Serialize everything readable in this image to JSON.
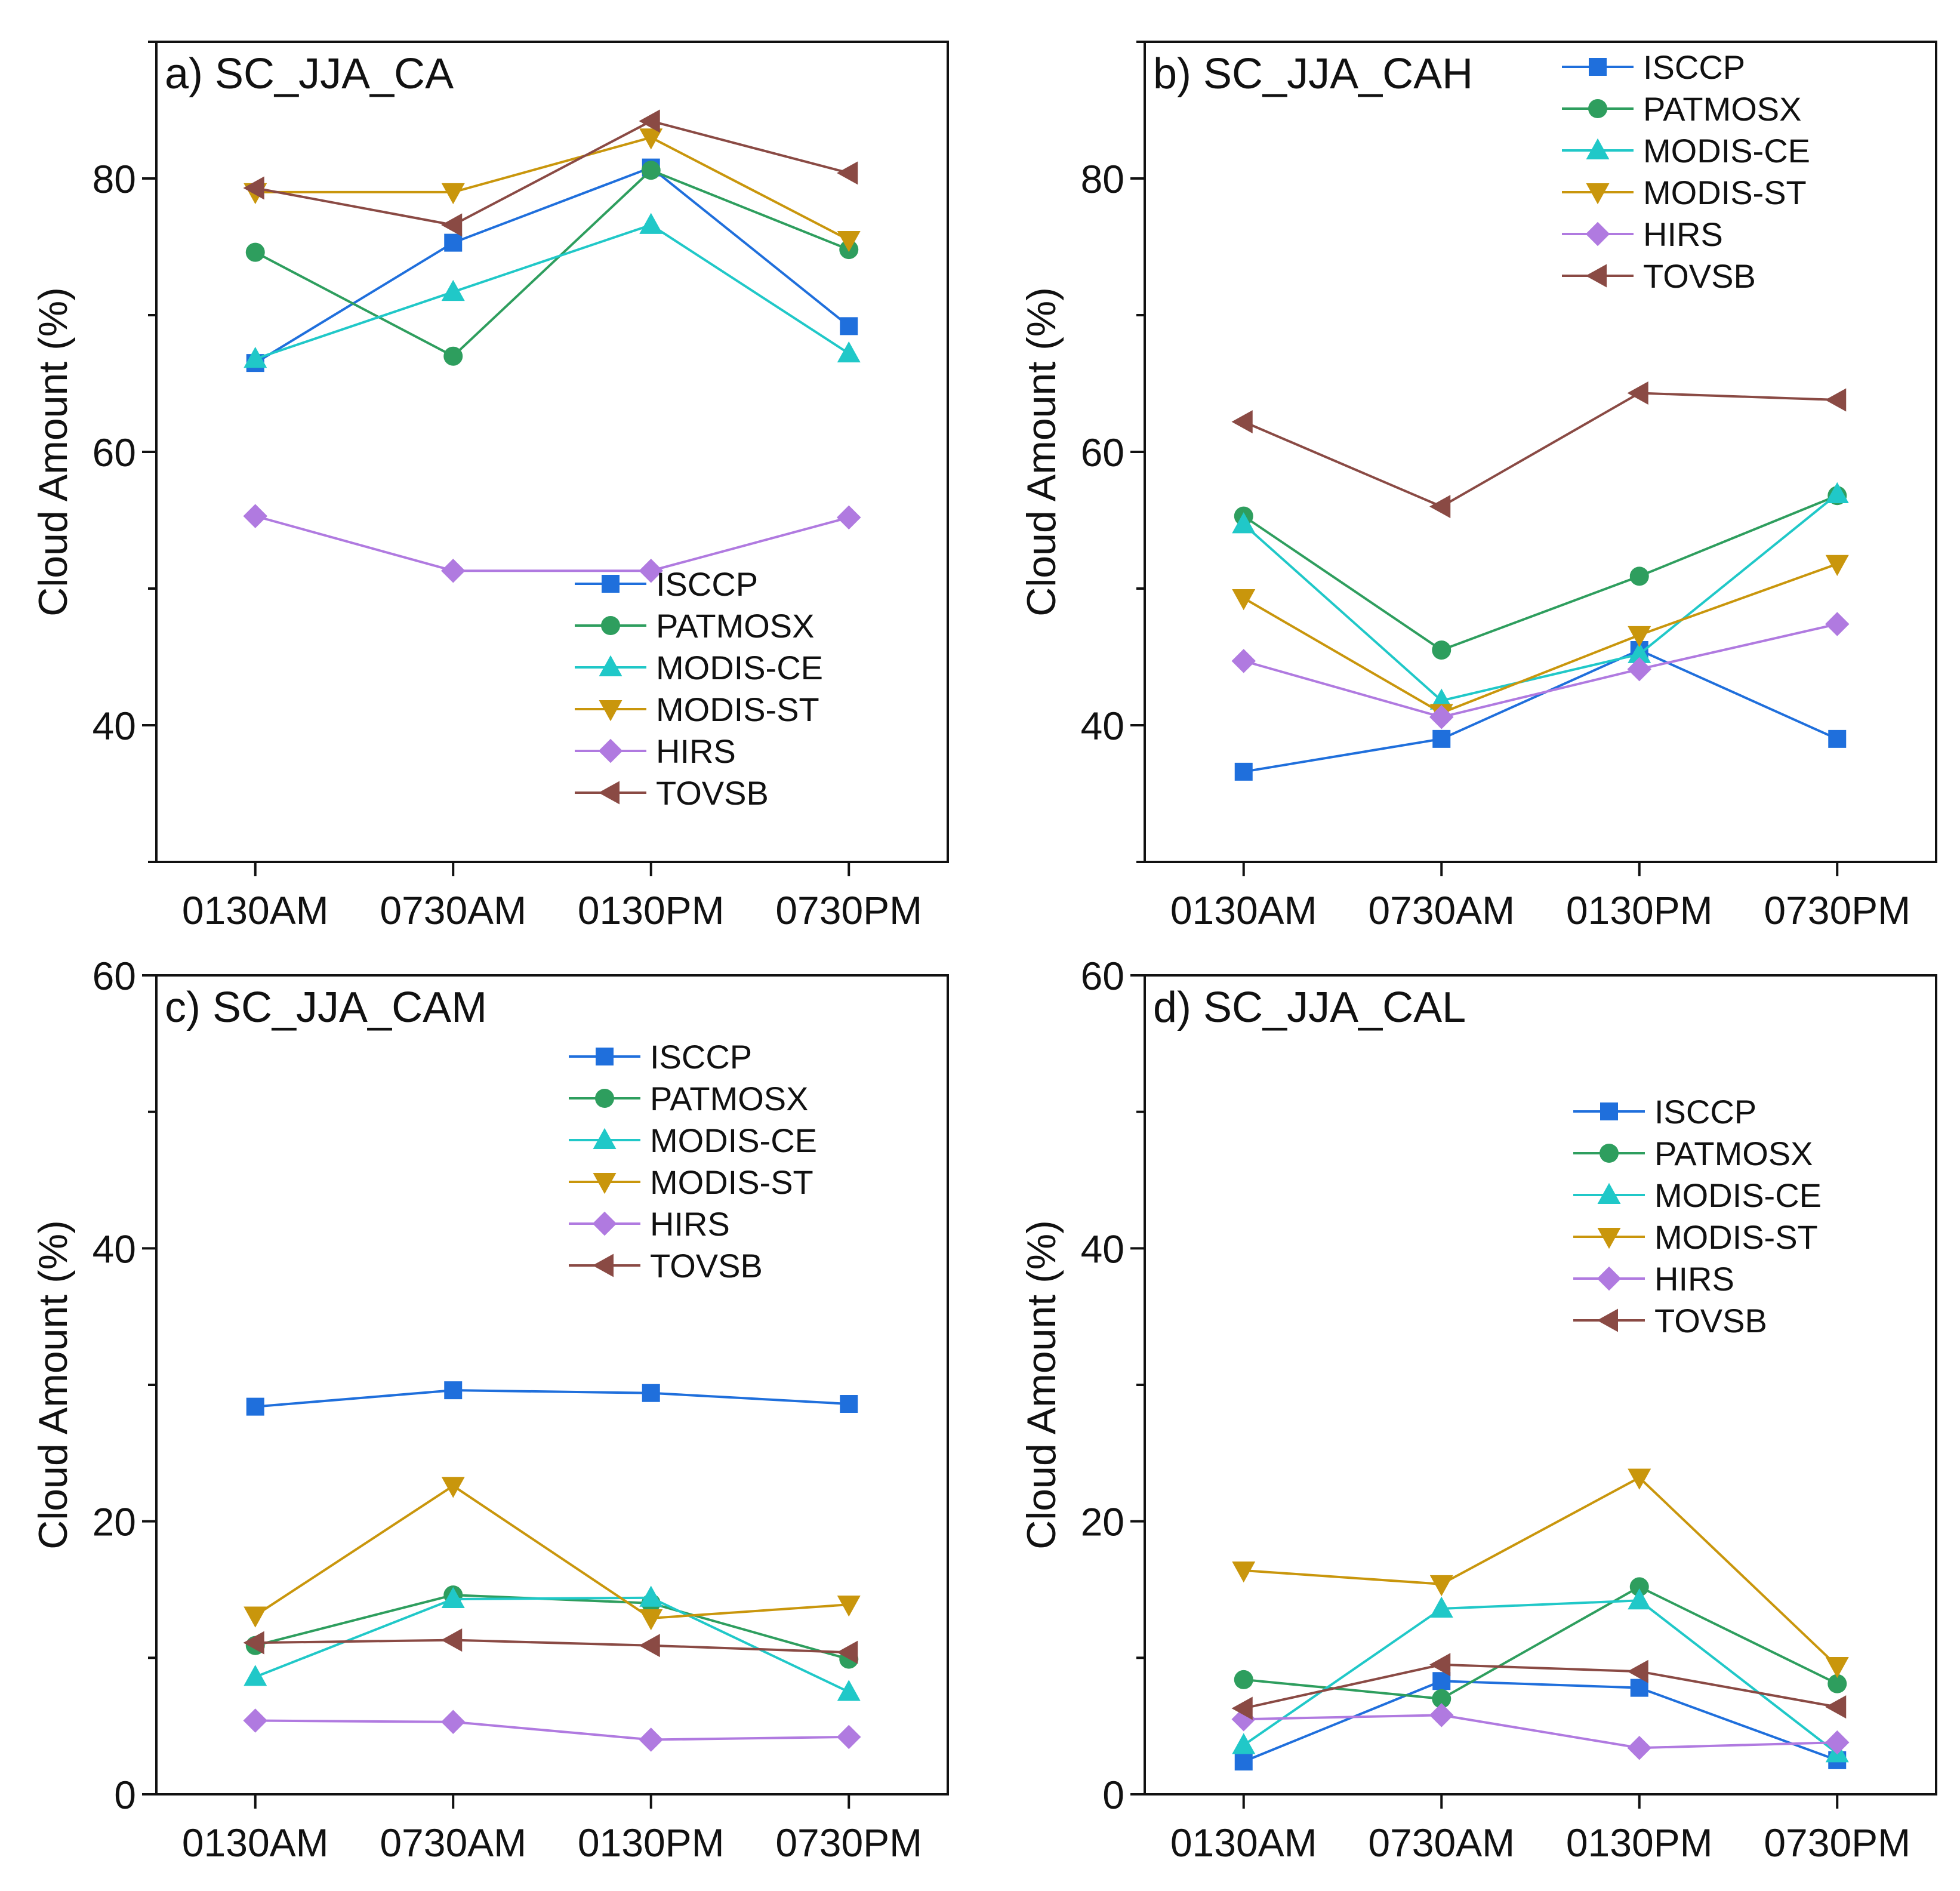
{
  "colors": {
    "ISCCP": "#1f6fdc",
    "PATMOSX": "#2e9e5e",
    "MODIS-CE": "#20c8c8",
    "MODIS-ST": "#c9960c",
    "HIRS": "#b07ae0",
    "TOVSB": "#8a4a44"
  },
  "chart_data": [
    {
      "type": "line",
      "title": "a) SC_JJA_CA",
      "xlabel": "",
      "ylabel": "Cloud Amount (%)",
      "categories": [
        "0130AM",
        "0730AM",
        "0130PM",
        "0730PM"
      ],
      "ylim": [
        30,
        90
      ],
      "yticks": [
        40,
        60,
        80
      ],
      "legend_position": "bottom-right",
      "series": [
        {
          "name": "ISCCP",
          "marker": "square",
          "values": [
            66.5,
            75.3,
            80.8,
            69.2
          ]
        },
        {
          "name": "PATMOSX",
          "marker": "circle",
          "values": [
            74.6,
            67.0,
            80.6,
            74.8
          ]
        },
        {
          "name": "MODIS-CE",
          "marker": "triangle-up",
          "values": [
            66.8,
            71.7,
            76.6,
            67.2
          ]
        },
        {
          "name": "MODIS-ST",
          "marker": "triangle-down",
          "values": [
            79.0,
            79.0,
            83.0,
            75.5
          ]
        },
        {
          "name": "HIRS",
          "marker": "diamond",
          "values": [
            55.3,
            51.3,
            51.3,
            55.2
          ]
        },
        {
          "name": "TOVSB",
          "marker": "triangle-left",
          "values": [
            79.3,
            76.6,
            84.2,
            80.4
          ]
        }
      ]
    },
    {
      "type": "line",
      "title": "b) SC_JJA_CAH",
      "xlabel": "",
      "ylabel": "Cloud Amount (%)",
      "categories": [
        "0130AM",
        "0730AM",
        "0130PM",
        "0730PM"
      ],
      "ylim": [
        30,
        90
      ],
      "yticks": [
        40,
        60,
        80
      ],
      "legend_position": "top-right",
      "series": [
        {
          "name": "ISCCP",
          "marker": "square",
          "values": [
            36.6,
            39.0,
            45.5,
            39.0
          ]
        },
        {
          "name": "PATMOSX",
          "marker": "circle",
          "values": [
            55.3,
            45.5,
            50.9,
            56.8
          ]
        },
        {
          "name": "MODIS-CE",
          "marker": "triangle-up",
          "values": [
            54.7,
            41.8,
            45.2,
            56.9
          ]
        },
        {
          "name": "MODIS-ST",
          "marker": "triangle-down",
          "values": [
            49.3,
            40.9,
            46.6,
            51.8
          ]
        },
        {
          "name": "HIRS",
          "marker": "diamond",
          "values": [
            44.7,
            40.6,
            44.1,
            47.4
          ]
        },
        {
          "name": "TOVSB",
          "marker": "triangle-left",
          "values": [
            62.2,
            56.0,
            64.3,
            63.8
          ]
        }
      ]
    },
    {
      "type": "line",
      "title": "c) SC_JJA_CAM",
      "xlabel": "",
      "ylabel": "Cloud Amount (%)",
      "categories": [
        "0130AM",
        "0730AM",
        "0130PM",
        "0730PM"
      ],
      "ylim": [
        0,
        60
      ],
      "yticks": [
        0,
        20,
        40,
        60
      ],
      "legend_position": "top-right",
      "series": [
        {
          "name": "ISCCP",
          "marker": "square",
          "values": [
            28.4,
            29.6,
            29.4,
            28.6
          ]
        },
        {
          "name": "PATMOSX",
          "marker": "circle",
          "values": [
            10.9,
            14.6,
            14.0,
            9.9
          ]
        },
        {
          "name": "MODIS-CE",
          "marker": "triangle-up",
          "values": [
            8.6,
            14.3,
            14.4,
            7.5
          ]
        },
        {
          "name": "MODIS-ST",
          "marker": "triangle-down",
          "values": [
            13.1,
            22.6,
            12.9,
            13.9
          ]
        },
        {
          "name": "HIRS",
          "marker": "diamond",
          "values": [
            5.4,
            5.3,
            4.0,
            4.2
          ]
        },
        {
          "name": "TOVSB",
          "marker": "triangle-left",
          "values": [
            11.1,
            11.3,
            10.9,
            10.4
          ]
        }
      ]
    },
    {
      "type": "line",
      "title": "d) SC_JJA_CAL",
      "xlabel": "",
      "ylabel": "Cloud Amount (%)",
      "categories": [
        "0130AM",
        "0730AM",
        "0130PM",
        "0730PM"
      ],
      "ylim": [
        0,
        60
      ],
      "yticks": [
        0,
        20,
        40,
        60
      ],
      "legend_position": "top-right",
      "series": [
        {
          "name": "ISCCP",
          "marker": "square",
          "values": [
            2.4,
            8.3,
            7.8,
            2.5
          ]
        },
        {
          "name": "PATMOSX",
          "marker": "circle",
          "values": [
            8.4,
            7.0,
            15.2,
            8.1
          ]
        },
        {
          "name": "MODIS-CE",
          "marker": "triangle-up",
          "values": [
            3.6,
            13.6,
            14.2,
            3.0
          ]
        },
        {
          "name": "MODIS-ST",
          "marker": "triangle-down",
          "values": [
            16.4,
            15.4,
            23.2,
            9.4
          ]
        },
        {
          "name": "HIRS",
          "marker": "diamond",
          "values": [
            5.5,
            5.8,
            3.4,
            3.8
          ]
        },
        {
          "name": "TOVSB",
          "marker": "triangle-left",
          "values": [
            6.3,
            9.5,
            9.0,
            6.4
          ]
        }
      ]
    }
  ]
}
